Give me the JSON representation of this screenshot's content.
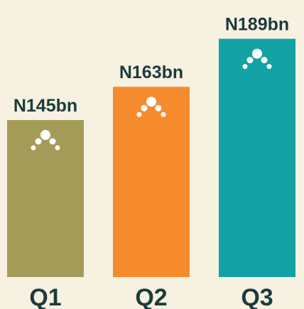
{
  "chart_data": {
    "type": "bar",
    "categories": [
      "Q1",
      "Q2",
      "Q3"
    ],
    "values": [
      145,
      163,
      189
    ],
    "value_labels": [
      "N145bn",
      "N163bn",
      "N189bn"
    ],
    "colors": [
      "#a59b58",
      "#f68b2e",
      "#12a2a4"
    ],
    "ylim": [
      60,
      195
    ]
  }
}
